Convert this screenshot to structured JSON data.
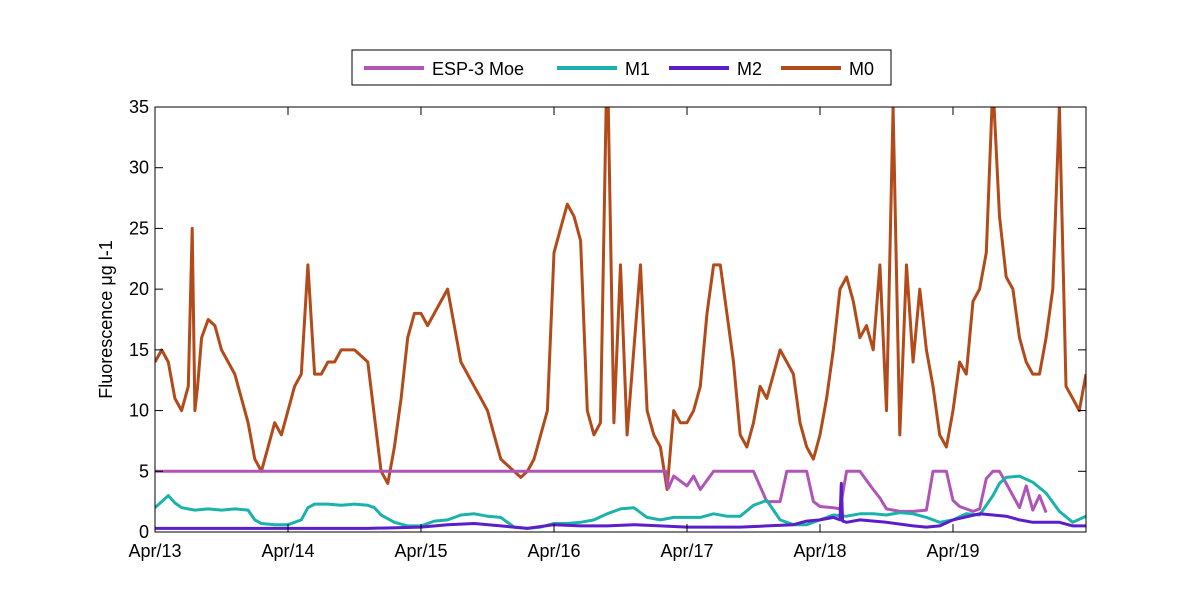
{
  "chart_data": {
    "type": "line",
    "ylabel": "Fluorescence μg l-1",
    "xlabel": "",
    "ylim": [
      0,
      35
    ],
    "xlim": [
      0,
      7
    ],
    "yticks": [
      0,
      5,
      10,
      15,
      20,
      25,
      30,
      35
    ],
    "xticks": [
      {
        "x": 0,
        "label": "Apr/13"
      },
      {
        "x": 1,
        "label": "Apr/14"
      },
      {
        "x": 2,
        "label": "Apr/15"
      },
      {
        "x": 3,
        "label": "Apr/16"
      },
      {
        "x": 4,
        "label": "Apr/17"
      },
      {
        "x": 5,
        "label": "Apr/18"
      },
      {
        "x": 6,
        "label": "Apr/19"
      }
    ],
    "grid": false,
    "legend_position": "top",
    "series": [
      {
        "name": "ESP-3 Moe",
        "color": "#b054b8",
        "x": [
          0,
          0.5,
          1,
          1.5,
          2,
          2.5,
          3,
          3.5,
          3.84,
          3.86,
          3.9,
          4.0,
          4.05,
          4.1,
          4.2,
          4.3,
          4.35,
          4.5,
          4.6,
          4.65,
          4.7,
          4.75,
          4.8,
          4.9,
          4.95,
          5.0,
          5.1,
          5.15,
          5.2,
          5.3,
          5.4,
          5.45,
          5.5,
          5.55,
          5.6,
          5.7,
          5.8,
          5.85,
          5.9,
          5.95,
          6.0,
          6.05,
          6.1,
          6.15,
          6.2,
          6.25,
          6.3,
          6.35,
          6.4,
          6.5,
          6.55,
          6.6,
          6.65,
          6.7
        ],
        "y": [
          5,
          5,
          5,
          5,
          5,
          5,
          5,
          5,
          5,
          3.6,
          4.6,
          3.8,
          4.6,
          3.5,
          5,
          5,
          5,
          5,
          2.5,
          2.5,
          2.5,
          5,
          5,
          5,
          2.5,
          2.1,
          2.0,
          1.9,
          5,
          5,
          3.5,
          2.8,
          1.9,
          1.8,
          1.7,
          1.7,
          1.8,
          5,
          5,
          5,
          2.6,
          2.1,
          1.9,
          1.7,
          1.9,
          4.4,
          5,
          5,
          4.0,
          2.0,
          3.8,
          1.8,
          3.0,
          1.6
        ]
      },
      {
        "name": "M1",
        "color": "#1bb2ab",
        "x": [
          0,
          0.05,
          0.1,
          0.15,
          0.2,
          0.3,
          0.4,
          0.5,
          0.6,
          0.7,
          0.75,
          0.8,
          0.9,
          1.0,
          1.1,
          1.15,
          1.2,
          1.3,
          1.4,
          1.5,
          1.6,
          1.65,
          1.7,
          1.8,
          1.9,
          2.0,
          2.1,
          2.2,
          2.3,
          2.4,
          2.5,
          2.6,
          2.7,
          2.8,
          2.9,
          3.0,
          3.1,
          3.2,
          3.3,
          3.4,
          3.5,
          3.6,
          3.7,
          3.8,
          3.9,
          4.0,
          4.1,
          4.2,
          4.3,
          4.4,
          4.5,
          4.6,
          4.7,
          4.8,
          4.9,
          5.0,
          5.1,
          5.2,
          5.3,
          5.4,
          5.5,
          5.6,
          5.7,
          5.8,
          5.9,
          6.0,
          6.1,
          6.2,
          6.3,
          6.35,
          6.4,
          6.5,
          6.6,
          6.7,
          6.8,
          6.9,
          7.0
        ],
        "y": [
          2.0,
          2.5,
          3.0,
          2.4,
          2.0,
          1.8,
          1.9,
          1.8,
          1.9,
          1.8,
          1.0,
          0.7,
          0.6,
          0.6,
          1.0,
          2.0,
          2.3,
          2.3,
          2.2,
          2.3,
          2.2,
          2.0,
          1.4,
          0.8,
          0.5,
          0.5,
          0.9,
          1.0,
          1.4,
          1.5,
          1.3,
          1.2,
          0.4,
          0.3,
          0.4,
          0.7,
          0.7,
          0.8,
          1.0,
          1.5,
          1.9,
          2.0,
          1.2,
          1.0,
          1.2,
          1.2,
          1.2,
          1.5,
          1.3,
          1.3,
          2.2,
          2.6,
          1.0,
          0.6,
          0.6,
          1.0,
          1.4,
          1.3,
          1.5,
          1.5,
          1.4,
          1.6,
          1.5,
          1.2,
          0.8,
          1.0,
          1.5,
          1.4,
          3.0,
          4.0,
          4.5,
          4.6,
          4.1,
          3.2,
          1.7,
          0.8,
          1.3
        ]
      },
      {
        "name": "M2",
        "color": "#5b1ec9",
        "x": [
          0,
          0.3,
          0.6,
          1.0,
          1.3,
          1.6,
          2.0,
          2.2,
          2.4,
          2.6,
          2.8,
          3.0,
          3.2,
          3.4,
          3.6,
          3.8,
          4.0,
          4.2,
          4.4,
          4.6,
          4.8,
          4.9,
          5.0,
          5.1,
          5.15,
          5.16,
          5.17,
          5.2,
          5.3,
          5.5,
          5.7,
          5.8,
          5.9,
          6.0,
          6.2,
          6.4,
          6.5,
          6.6,
          6.8,
          6.9,
          7.0
        ],
        "y": [
          0.3,
          0.3,
          0.3,
          0.3,
          0.3,
          0.3,
          0.4,
          0.6,
          0.7,
          0.5,
          0.3,
          0.6,
          0.5,
          0.5,
          0.6,
          0.5,
          0.4,
          0.4,
          0.4,
          0.5,
          0.6,
          0.9,
          1.0,
          1.2,
          1.0,
          4.0,
          0.9,
          0.8,
          1.0,
          0.8,
          0.5,
          0.4,
          0.5,
          1.0,
          1.5,
          1.3,
          1.0,
          0.8,
          0.8,
          0.5,
          0.5
        ]
      },
      {
        "name": "M0",
        "color": "#b24a1a",
        "x": [
          0,
          0.05,
          0.1,
          0.15,
          0.2,
          0.25,
          0.28,
          0.3,
          0.32,
          0.35,
          0.4,
          0.45,
          0.5,
          0.6,
          0.7,
          0.75,
          0.8,
          0.85,
          0.9,
          0.95,
          1.0,
          1.05,
          1.1,
          1.15,
          1.2,
          1.25,
          1.3,
          1.35,
          1.4,
          1.5,
          1.6,
          1.7,
          1.75,
          1.8,
          1.85,
          1.9,
          1.95,
          2.0,
          2.05,
          2.1,
          2.2,
          2.3,
          2.4,
          2.45,
          2.5,
          2.55,
          2.6,
          2.7,
          2.75,
          2.8,
          2.85,
          2.9,
          2.95,
          3.0,
          3.05,
          3.1,
          3.15,
          3.2,
          3.25,
          3.3,
          3.35,
          3.4,
          3.45,
          3.5,
          3.55,
          3.6,
          3.65,
          3.7,
          3.75,
          3.8,
          3.85,
          3.9,
          3.95,
          4.0,
          4.05,
          4.1,
          4.15,
          4.2,
          4.25,
          4.3,
          4.35,
          4.4,
          4.45,
          4.5,
          4.55,
          4.6,
          4.65,
          4.7,
          4.75,
          4.8,
          4.85,
          4.9,
          4.95,
          5.0,
          5.05,
          5.1,
          5.15,
          5.2,
          5.25,
          5.3,
          5.35,
          5.4,
          5.45,
          5.5,
          5.55,
          5.6,
          5.65,
          5.7,
          5.75,
          5.8,
          5.85,
          5.9,
          5.95,
          6.0,
          6.05,
          6.1,
          6.15,
          6.2,
          6.25,
          6.3,
          6.35,
          6.4,
          6.45,
          6.5,
          6.55,
          6.6,
          6.65,
          6.7,
          6.75,
          6.8,
          6.85,
          6.9,
          6.95,
          7.0
        ],
        "y": [
          14,
          15,
          14,
          11,
          10,
          12,
          25,
          10,
          12,
          16,
          17.5,
          17,
          15,
          13,
          9,
          6,
          5,
          7,
          9,
          8,
          10,
          12,
          13,
          22,
          13,
          13,
          14,
          14,
          15,
          15,
          14,
          5,
          4,
          7,
          11,
          16,
          18,
          18,
          17,
          18,
          20,
          14,
          12,
          11,
          10,
          8,
          6,
          5,
          4.5,
          5,
          6,
          8,
          10,
          23,
          25,
          27,
          26,
          24,
          10,
          8,
          9,
          40,
          9,
          22,
          8,
          15,
          22,
          10,
          8,
          7,
          3.5,
          10,
          9,
          9,
          10,
          12,
          18,
          22,
          22,
          18,
          14,
          8,
          7,
          9,
          12,
          11,
          13,
          15,
          14,
          13,
          9,
          7,
          6,
          8,
          11,
          15,
          20,
          21,
          19,
          16,
          17,
          15,
          22,
          10,
          35,
          8,
          22,
          14,
          20,
          15,
          12,
          8,
          7,
          10,
          14,
          13,
          19,
          20,
          23,
          37,
          26,
          21,
          20,
          16,
          14,
          13,
          13,
          16,
          20,
          35,
          12,
          11,
          10,
          13
        ]
      }
    ]
  }
}
